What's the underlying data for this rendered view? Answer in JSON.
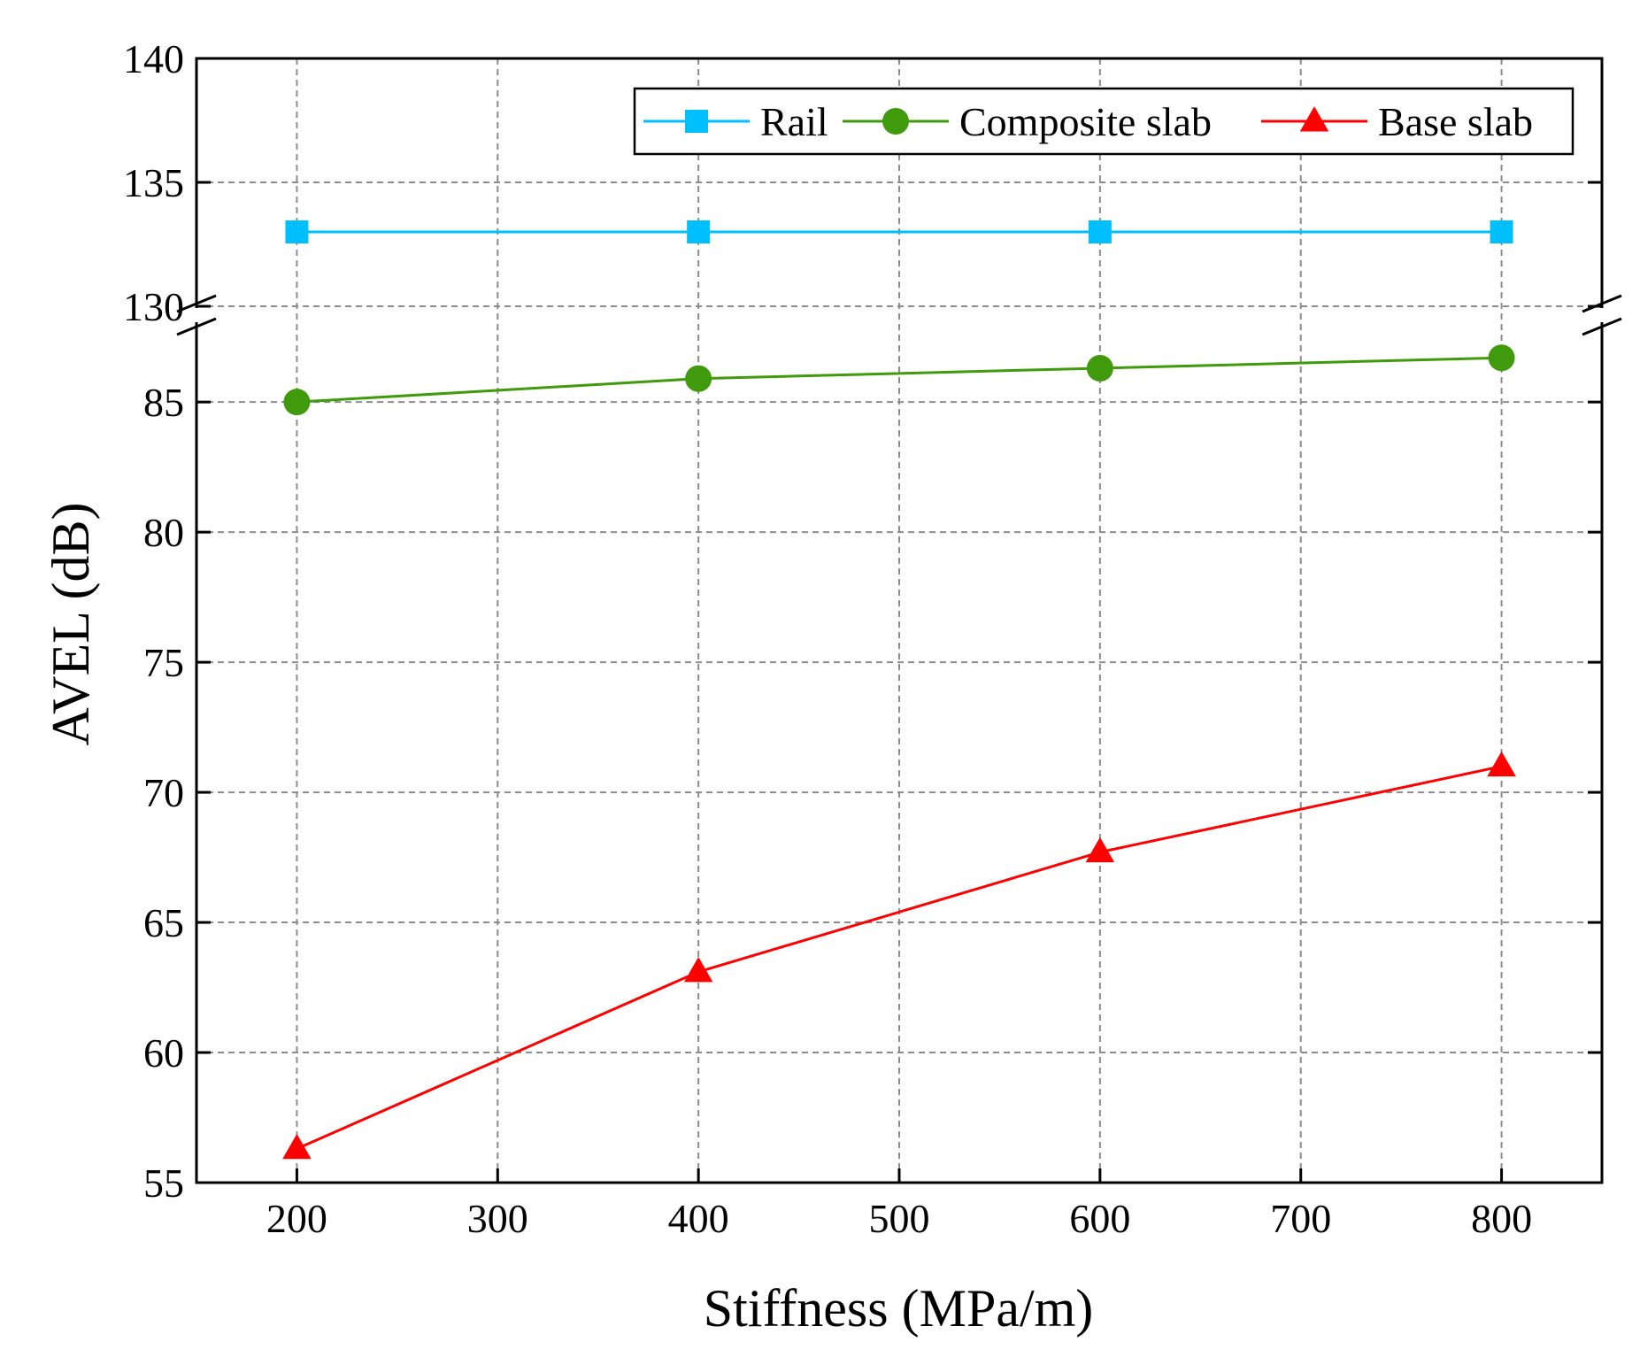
{
  "chart_data": {
    "type": "line",
    "xlabel": "Stiffness (MPa/m)",
    "ylabel": "AVEL (dB)",
    "x": [
      200,
      400,
      600,
      800
    ],
    "xlim": [
      150,
      850
    ],
    "xticks": [
      200,
      300,
      400,
      500,
      600,
      700,
      800
    ],
    "y_break": {
      "upper_range": [
        130,
        140
      ],
      "lower_range": [
        55,
        88
      ],
      "upper_ticks": [
        130,
        135,
        140
      ],
      "lower_ticks": [
        55,
        60,
        65,
        70,
        75,
        80,
        85
      ]
    },
    "grid": true,
    "legend_position": "top-right",
    "series": [
      {
        "name": "Rail",
        "color": "#00bfff",
        "marker": "square",
        "values": [
          133,
          133,
          133,
          133
        ]
      },
      {
        "name": "Composite slab",
        "color": "#3f9b0b",
        "marker": "circle",
        "values": [
          85.0,
          85.9,
          86.3,
          86.7
        ]
      },
      {
        "name": "Base slab",
        "color": "#ff0000",
        "marker": "triangle",
        "values": [
          56.3,
          63.1,
          67.7,
          71.0
        ]
      }
    ]
  }
}
